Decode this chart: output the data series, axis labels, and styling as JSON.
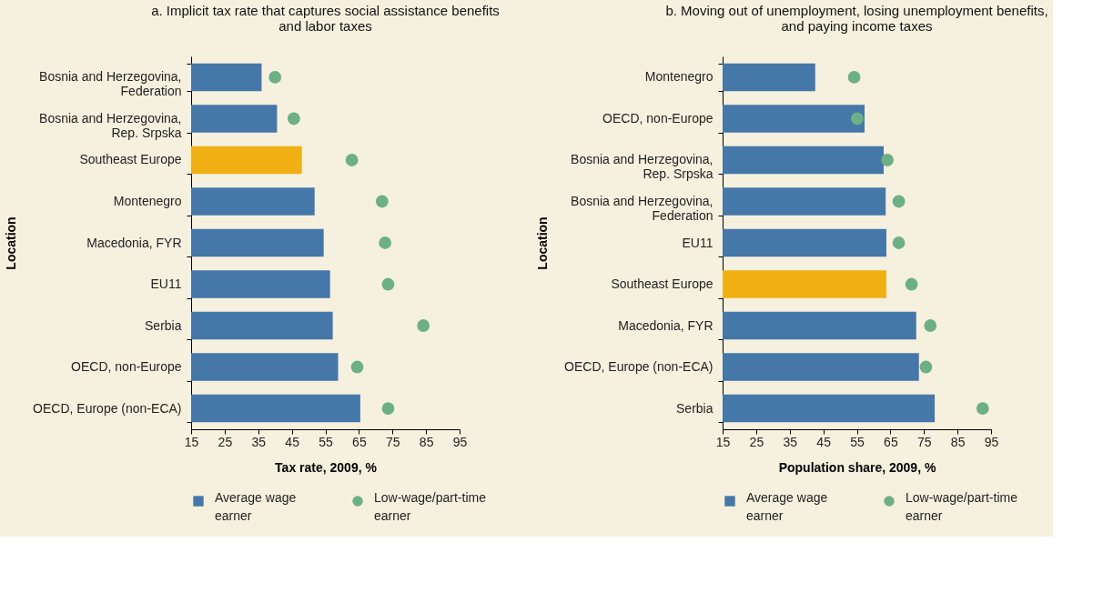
{
  "chart_data": [
    {
      "type": "bar",
      "orientation": "horizontal",
      "title": "a. Implicit tax rate that captures social assistance benefits and labor taxes",
      "xlabel": "Tax rate, 2009, %",
      "ylabel": "Location",
      "categories": [
        "Bosnia and Herzegovina, Federation",
        "Bosnia and Herzegovina, Rep. Srpska",
        "Southeast Europe",
        "Montenegro",
        "Macedonia, FYR",
        "EU11",
        "Serbia",
        "OECD, non-Europe",
        "OECD, Europe (non-ECA)"
      ],
      "series": [
        {
          "name": "Average wage earner",
          "type": "bar",
          "color": "#4577a8",
          "colors": [
            "#4577a8",
            "#4577a8",
            "#f0b014",
            "#4577a8",
            "#4577a8",
            "#4577a8",
            "#4577a8",
            "#4577a8",
            "#4577a8"
          ],
          "values": [
            36.0,
            40.6,
            48.0,
            51.8,
            54.5,
            56.4,
            57.2,
            58.8,
            65.4
          ]
        },
        {
          "name": "Low-wage/part-time earner",
          "type": "scatter",
          "color": "#6db085",
          "values": [
            40.0,
            45.6,
            62.9,
            71.9,
            72.8,
            73.7,
            84.2,
            64.5,
            73.7
          ]
        }
      ],
      "xlim": [
        15,
        95
      ],
      "xticks": [
        15,
        25,
        35,
        45,
        55,
        65,
        75,
        85,
        95
      ],
      "grid": false,
      "legend": "bottom",
      "marker": "circle"
    },
    {
      "type": "bar",
      "orientation": "horizontal",
      "title": "b. Moving out of unemployment, losing unemployment benefits, and paying income taxes",
      "xlabel": "Population share, 2009, %",
      "ylabel": "Location",
      "categories": [
        "Montenegro",
        "OECD, non-Europe",
        "Bosnia and Herzegovina, Rep. Srpska",
        "Bosnia and Herzegovina, Federation",
        "EU11",
        "Southeast Europe",
        "Macedonia, FYR",
        "OECD, Europe (non-ECA)",
        "Serbia"
      ],
      "series": [
        {
          "name": "Average wage earner",
          "type": "bar",
          "color": "#4577a8",
          "colors": [
            "#4577a8",
            "#4577a8",
            "#4577a8",
            "#4577a8",
            "#4577a8",
            "#f0b014",
            "#4577a8",
            "#4577a8",
            "#4577a8"
          ],
          "values": [
            42.6,
            57.3,
            63.0,
            63.6,
            63.8,
            63.8,
            72.7,
            73.5,
            78.2
          ]
        },
        {
          "name": "Low-wage/part-time earner",
          "type": "scatter",
          "color": "#6db085",
          "values": [
            54.2,
            55.1,
            64.1,
            67.5,
            67.5,
            71.3,
            76.9,
            75.6,
            92.5
          ]
        }
      ],
      "xlim": [
        15,
        95
      ],
      "xticks": [
        15,
        25,
        35,
        45,
        55,
        65,
        75,
        85,
        95
      ],
      "grid": false,
      "legend": "bottom",
      "marker": "circle"
    }
  ]
}
